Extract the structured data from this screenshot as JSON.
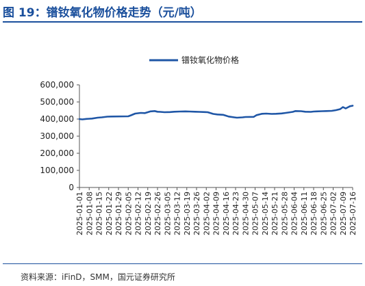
{
  "figure": {
    "title": "图 19：镨钕氧化物价格走势（元/吨）",
    "source": "资料来源：iFinD，SMM，国元证券研究所"
  },
  "colors": {
    "accent": "#1a4f9c",
    "series": "#1f56a6"
  },
  "chart_data": {
    "type": "line",
    "title": "",
    "xlabel": "",
    "ylabel": "",
    "ylim": [
      0,
      600000
    ],
    "yticks": [
      0,
      100000,
      200000,
      300000,
      400000,
      500000,
      600000
    ],
    "ytick_labels": [
      "0",
      "100,000",
      "200,000",
      "300,000",
      "400,000",
      "500,000",
      "600,000"
    ],
    "xticks": [
      "2025-01-01",
      "2025-01-08",
      "2025-01-15",
      "2025-01-22",
      "2025-01-29",
      "2025-02-05",
      "2025-02-12",
      "2025-02-19",
      "2025-02-26",
      "2025-03-05",
      "2025-03-12",
      "2025-03-19",
      "2025-03-26",
      "2025-04-02",
      "2025-04-09",
      "2025-04-16",
      "2025-04-23",
      "2025-04-30",
      "2025-05-07",
      "2025-05-14",
      "2025-05-21",
      "2025-05-28",
      "2025-06-04",
      "2025-06-11",
      "2025-06-18",
      "2025-06-25",
      "2025-07-02",
      "2025-07-09",
      "2025-07-16"
    ],
    "grid": false,
    "legend": "top-center",
    "series": [
      {
        "name": "镨钕氧化物价格",
        "x": [
          "2025-01-01",
          "2025-01-03",
          "2025-01-06",
          "2025-01-10",
          "2025-01-14",
          "2025-01-17",
          "2025-01-21",
          "2025-01-24",
          "2025-02-05",
          "2025-02-07",
          "2025-02-10",
          "2025-02-14",
          "2025-02-17",
          "2025-02-19",
          "2025-02-21",
          "2025-02-24",
          "2025-02-26",
          "2025-02-28",
          "2025-03-03",
          "2025-03-07",
          "2025-03-10",
          "2025-03-14",
          "2025-03-18",
          "2025-03-21",
          "2025-03-25",
          "2025-03-28",
          "2025-04-01",
          "2025-04-03",
          "2025-04-07",
          "2025-04-10",
          "2025-04-14",
          "2025-04-16",
          "2025-04-18",
          "2025-04-22",
          "2025-04-24",
          "2025-04-28",
          "2025-04-30",
          "2025-05-06",
          "2025-05-08",
          "2025-05-12",
          "2025-05-15",
          "2025-05-19",
          "2025-05-22",
          "2025-05-26",
          "2025-05-29",
          "2025-06-03",
          "2025-06-05",
          "2025-06-09",
          "2025-06-12",
          "2025-06-16",
          "2025-06-18",
          "2025-06-20",
          "2025-06-24",
          "2025-06-27",
          "2025-07-01",
          "2025-07-04",
          "2025-07-07",
          "2025-07-09",
          "2025-07-11",
          "2025-07-14",
          "2025-07-16"
        ],
        "values": [
          400000,
          398000,
          401000,
          403000,
          408000,
          410000,
          414000,
          415000,
          416000,
          422000,
          432000,
          436000,
          435000,
          440000,
          445000,
          447000,
          443000,
          442000,
          440000,
          441000,
          443000,
          444000,
          445000,
          444000,
          443000,
          442000,
          441000,
          440000,
          430000,
          427000,
          425000,
          420000,
          415000,
          410000,
          408000,
          410000,
          412000,
          413000,
          423000,
          431000,
          432000,
          430000,
          431000,
          433000,
          436000,
          442000,
          447000,
          446000,
          443000,
          442000,
          444000,
          445000,
          446000,
          447000,
          448000,
          452000,
          458000,
          470000,
          462000,
          475000,
          478000
        ]
      }
    ]
  }
}
